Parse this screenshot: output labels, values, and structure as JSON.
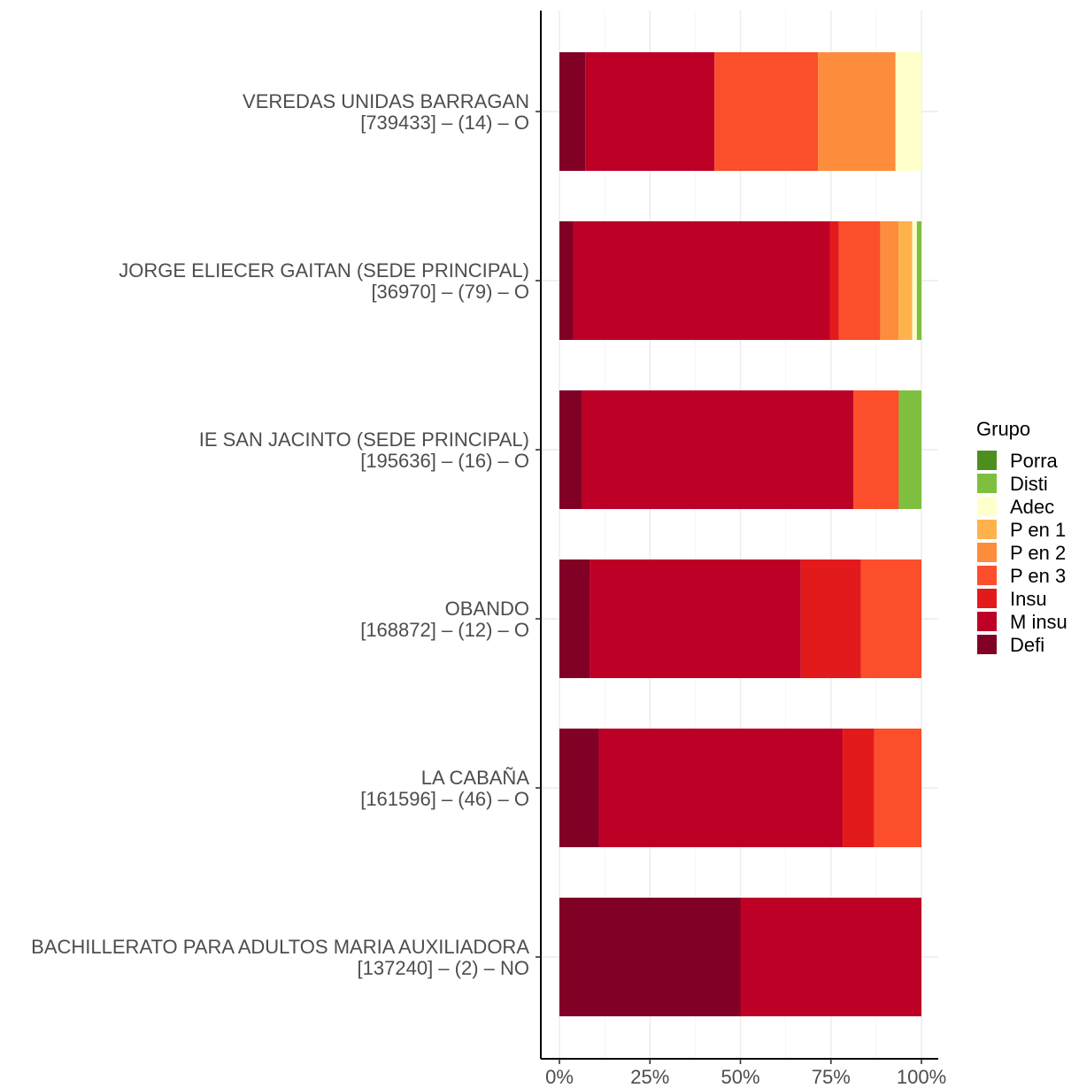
{
  "chart_data": {
    "type": "bar",
    "orientation": "horizontal",
    "stacked": "percent",
    "categories": [
      {
        "line1": "VEREDAS UNIDAS BARRAGAN ",
        "line2": "[739433] – (14) – O"
      },
      {
        "line1": "JORGE ELIECER GAITAN (SEDE PRINCIPAL) ",
        "line2": "[36970] – (79) – O"
      },
      {
        "line1": "IE SAN JACINTO (SEDE PRINCIPAL) ",
        "line2": "[195636] – (16) – O"
      },
      {
        "line1": "OBANDO ",
        "line2": "[168872] – (12) – O"
      },
      {
        "line1": "LA CABAÑA ",
        "line2": "[161596] – (46) – O"
      },
      {
        "line1": "BACHILLERATO PARA ADULTOS MARIA AUXILIADORA ",
        "line2": "[137240] – (2) – NO"
      }
    ],
    "series": [
      {
        "name": "Defi",
        "color": "#800026",
        "values": [
          0.0714,
          0.038,
          0.0625,
          0.0833,
          0.1087,
          0.5
        ]
      },
      {
        "name": "M insu",
        "color": "#bd0026",
        "values": [
          0.3571,
          0.7089,
          0.75,
          0.5833,
          0.6739,
          0.5
        ]
      },
      {
        "name": "Insu",
        "color": "#e31a1c",
        "values": [
          0,
          0.0253,
          0,
          0.1667,
          0.087,
          0
        ]
      },
      {
        "name": "P en 3",
        "color": "#fc4e2a",
        "values": [
          0.2857,
          0.1139,
          0.125,
          0.1667,
          0.1304,
          0
        ]
      },
      {
        "name": "P en 2",
        "color": "#fd8d3c",
        "values": [
          0.2143,
          0.0506,
          0,
          0,
          0,
          0
        ]
      },
      {
        "name": "P en 1",
        "color": "#feb24c",
        "values": [
          0,
          0.038,
          0,
          0,
          0,
          0
        ]
      },
      {
        "name": "Adec",
        "color": "#ffffcc",
        "values": [
          0.0714,
          0.0127,
          0,
          0,
          0,
          0
        ]
      },
      {
        "name": "Disti",
        "color": "#7fbf3f",
        "values": [
          0,
          0.0127,
          0.0625,
          0,
          0,
          0
        ]
      },
      {
        "name": "Porra",
        "color": "#4d8f1f",
        "values": [
          0,
          0,
          0,
          0,
          0,
          0
        ]
      }
    ],
    "xlim": [
      0,
      1
    ],
    "x_ticks": [
      "0%",
      "25%",
      "50%",
      "75%",
      "100%"
    ],
    "grid": true,
    "legend": {
      "title": "Grupo",
      "placement": "right",
      "order": [
        "Porra",
        "Disti",
        "Adec",
        "P en 1",
        "P en 2",
        "P en 3",
        "Insu",
        "M insu",
        "Defi"
      ]
    }
  }
}
